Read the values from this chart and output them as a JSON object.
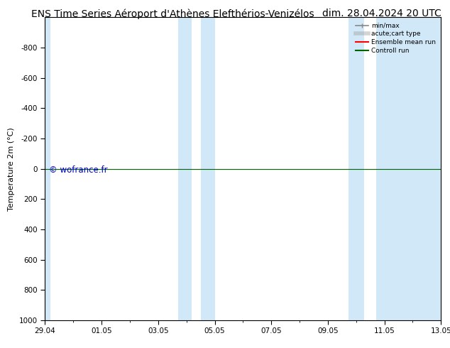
{
  "title_left": "ENS Time Series Aéroport d'Athènes Elefthérios-Venizélos",
  "title_right": "dim. 28.04.2024 20 UTC",
  "ylabel": "Temperature 2m (°C)",
  "ylim": [
    1000,
    -1000
  ],
  "yticks": [
    -800,
    -600,
    -400,
    -200,
    0,
    200,
    400,
    600,
    800,
    1000
  ],
  "xtick_labels": [
    "29.04",
    "01.05",
    "03.05",
    "05.05",
    "07.05",
    "09.05",
    "11.05",
    "13.05"
  ],
  "xlim_start": 0,
  "xlim_end": 14,
  "n_xpoints": 14,
  "shaded_bands": [
    {
      "xmin": 0.0,
      "xmax": 0.18
    },
    {
      "xmin": 4.72,
      "xmax": 5.18
    },
    {
      "xmin": 5.5,
      "xmax": 6.0
    },
    {
      "xmin": 10.72,
      "xmax": 11.28
    },
    {
      "xmin": 11.72,
      "xmax": 14.0
    }
  ],
  "hline_y": 0,
  "hline_color": "#006400",
  "hline_linewidth": 0.8,
  "background_color": "#ffffff",
  "plot_bg_color": "#ffffff",
  "shade_color": "#d0e8f8",
  "watermark": "© wofrance.fr",
  "watermark_color": "#0000cc",
  "legend_labels": [
    "min/max",
    "acute;cart type",
    "Ensemble mean run",
    "Controll run"
  ],
  "legend_colors": [
    "#888888",
    "#aaaaaa",
    "#ff0000",
    "#006400"
  ],
  "title_fontsize": 10,
  "axis_label_fontsize": 8,
  "tick_fontsize": 7.5
}
